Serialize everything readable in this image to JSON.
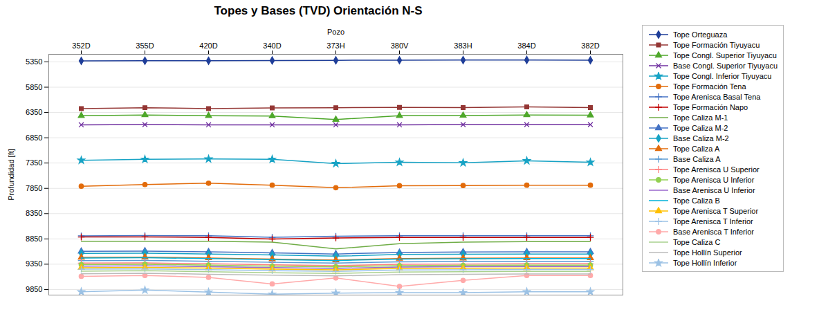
{
  "chart_data": {
    "type": "line",
    "title": "Topes y Bases (TVD) Orientación N-S",
    "xlabel": "Pozo",
    "ylabel": "Profundidad [ft]",
    "categories": [
      "352D",
      "355D",
      "420D",
      "340D",
      "373H",
      "380V",
      "383H",
      "384D",
      "382D"
    ],
    "series": [
      {
        "name": "Tope Orteguaza",
        "color": "#1F3E99",
        "marker": "diamond",
        "values": [
          5330,
          5328,
          5328,
          5322,
          5318,
          5316,
          5314,
          5312,
          5316
        ]
      },
      {
        "name": "Tope Formación Tiyuyacu",
        "color": "#943634",
        "marker": "square",
        "values": [
          6275,
          6255,
          6275,
          6260,
          6255,
          6250,
          6252,
          6240,
          6252
        ]
      },
      {
        "name": "Tope Congl. Superior Tiyuyacu",
        "color": "#4EA72A",
        "marker": "triangle",
        "values": [
          6415,
          6400,
          6415,
          6420,
          6490,
          6415,
          6410,
          6400,
          6405
        ]
      },
      {
        "name": "Base Congl. Superior Tiyuyacu",
        "color": "#7030A0",
        "marker": "times",
        "values": [
          6595,
          6590,
          6595,
          6595,
          6595,
          6595,
          6590,
          6590,
          6590
        ]
      },
      {
        "name": "Tope Congl. Inferior Tiyuyacu",
        "color": "#17A3C5",
        "marker": "star",
        "values": [
          7295,
          7275,
          7270,
          7275,
          7360,
          7335,
          7345,
          7305,
          7335
        ]
      },
      {
        "name": "Tope Formación Tena",
        "color": "#E26B0A",
        "marker": "circle",
        "values": [
          7808,
          7775,
          7748,
          7788,
          7838,
          7798,
          7795,
          7788,
          7788
        ]
      },
      {
        "name": "Tope Arenisca Basal Tena",
        "color": "#4472C4",
        "marker": "plus",
        "values": [
          8790,
          8785,
          8788,
          8818,
          8798,
          8788,
          8788,
          8788,
          8788
        ]
      },
      {
        "name": "Tope Formación Napo",
        "color": "#C00000",
        "marker": "plus",
        "values": [
          8812,
          8810,
          8822,
          8852,
          8832,
          8822,
          8822,
          8822,
          8820
        ]
      },
      {
        "name": "Tope Caliza M-1",
        "color": "#70AD47",
        "marker": "none",
        "values": [
          8895,
          8895,
          8895,
          8915,
          9048,
          8945,
          8915,
          8905,
          8905
        ]
      },
      {
        "name": "Tope Caliza M-2",
        "color": "#4472C4",
        "marker": "triangle",
        "values": [
          9095,
          9090,
          9105,
          9125,
          9148,
          9118,
          9108,
          9105,
          9105
        ]
      },
      {
        "name": "Base Caliza M-2",
        "color": "#17A3C5",
        "marker": "diamond",
        "values": [
          9135,
          9132,
          9148,
          9168,
          9192,
          9158,
          9152,
          9148,
          9148
        ]
      },
      {
        "name": "Tope Caliza A",
        "color": "#E26B0A",
        "marker": "triangle",
        "values": [
          9215,
          9210,
          9228,
          9248,
          9268,
          9238,
          9232,
          9228,
          9228
        ]
      },
      {
        "name": "Base Caliza A",
        "color": "#5B9BD5",
        "marker": "plus",
        "values": [
          9278,
          9275,
          9292,
          9312,
          9328,
          9302,
          9298,
          9292,
          9292
        ]
      },
      {
        "name": "Tope Arenisca U Superior",
        "color": "#FF8080",
        "marker": "plus",
        "values": [
          9328,
          9325,
          9342,
          9362,
          9378,
          9352,
          9348,
          9342,
          9342
        ]
      },
      {
        "name": "Tope Arenisca U Inferior",
        "color": "#92D050",
        "marker": "circle",
        "values": [
          9358,
          9352,
          9368,
          9388,
          9402,
          9378,
          9372,
          9368,
          9368
        ]
      },
      {
        "name": "Base Arenisca U Inferior",
        "color": "#9966CC",
        "marker": "none",
        "values": [
          9388,
          9382,
          9398,
          9415,
          9432,
          9405,
          9400,
          9395,
          9395
        ]
      },
      {
        "name": "Tope Caliza B",
        "color": "#00B0D8",
        "marker": "none",
        "values": [
          9228,
          9222,
          9238,
          9258,
          9278,
          9248,
          9242,
          9238,
          9238
        ]
      },
      {
        "name": "Tope Arenisca T Superior",
        "color": "#FFC000",
        "marker": "triangle",
        "values": [
          9418,
          9412,
          9428,
          9448,
          9462,
          9435,
          9430,
          9425,
          9425
        ]
      },
      {
        "name": "Tope Arenisca T Inferior",
        "color": "#9DC3E6",
        "marker": "plus",
        "values": [
          9448,
          9442,
          9458,
          9478,
          9492,
          9465,
          9460,
          9455,
          9455
        ]
      },
      {
        "name": "Base Arenisca T Inferior",
        "color": "#FFAAAA",
        "marker": "circle",
        "values": [
          9590,
          9572,
          9610,
          9740,
          9622,
          9790,
          9670,
          9572,
          9572
        ]
      },
      {
        "name": "Tope Caliza C",
        "color": "#A9D18E",
        "marker": "none",
        "values": [
          9488,
          9478,
          9498,
          9518,
          9532,
          9505,
          9498,
          9492,
          9492
        ]
      },
      {
        "name": "Tope Hollín Superior",
        "color": "#BBBBBB",
        "marker": "none",
        "values": [
          9538,
          9528,
          9548,
          9568,
          9582,
          9555,
          9548,
          9542,
          9542
        ]
      },
      {
        "name": "Tope Hollín Inferior",
        "color": "#9CC2E5",
        "marker": "star",
        "values": [
          9895,
          9862,
          9902,
          9942,
          9922,
          9912,
          9912,
          9895,
          9895
        ]
      }
    ],
    "ylim": [
      9960,
      5200
    ],
    "yticks": [
      5350,
      5850,
      6350,
      6850,
      7350,
      7850,
      8350,
      8850,
      9350,
      9850
    ],
    "grid": true,
    "legend": "right"
  }
}
